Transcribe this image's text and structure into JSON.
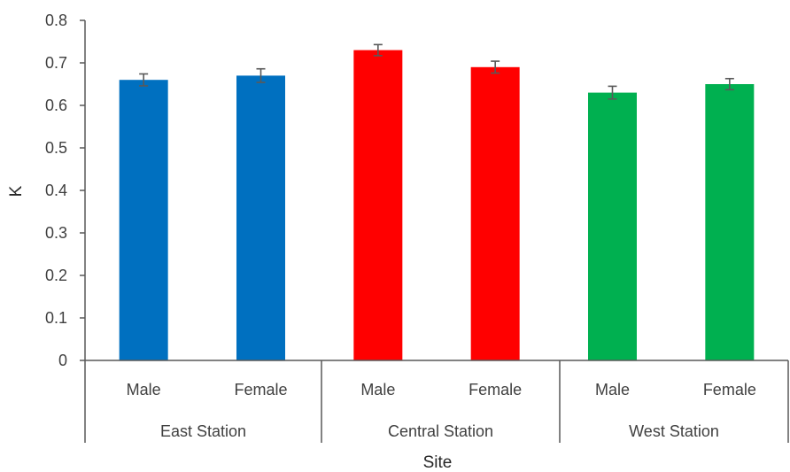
{
  "chart_data": {
    "type": "bar",
    "xlabel": "Site",
    "ylabel": "K",
    "ylim": [
      0,
      0.8
    ],
    "yticks": [
      "0",
      "0.1",
      "0.2",
      "0.3",
      "0.4",
      "0.5",
      "0.6",
      "0.7",
      "0.8"
    ],
    "grid": false,
    "groups": [
      {
        "name": "East Station",
        "color": "#0070C0",
        "bars": [
          {
            "label": "Male",
            "value": 0.66,
            "error": 0.014
          },
          {
            "label": "Female",
            "value": 0.67,
            "error": 0.016
          }
        ]
      },
      {
        "name": "Central Station",
        "color": "#FF0000",
        "bars": [
          {
            "label": "Male",
            "value": 0.73,
            "error": 0.013
          },
          {
            "label": "Female",
            "value": 0.69,
            "error": 0.014
          }
        ]
      },
      {
        "name": "West Station",
        "color": "#00B050",
        "bars": [
          {
            "label": "Male",
            "value": 0.63,
            "error": 0.015
          },
          {
            "label": "Female",
            "value": 0.65,
            "error": 0.013
          }
        ]
      }
    ]
  }
}
